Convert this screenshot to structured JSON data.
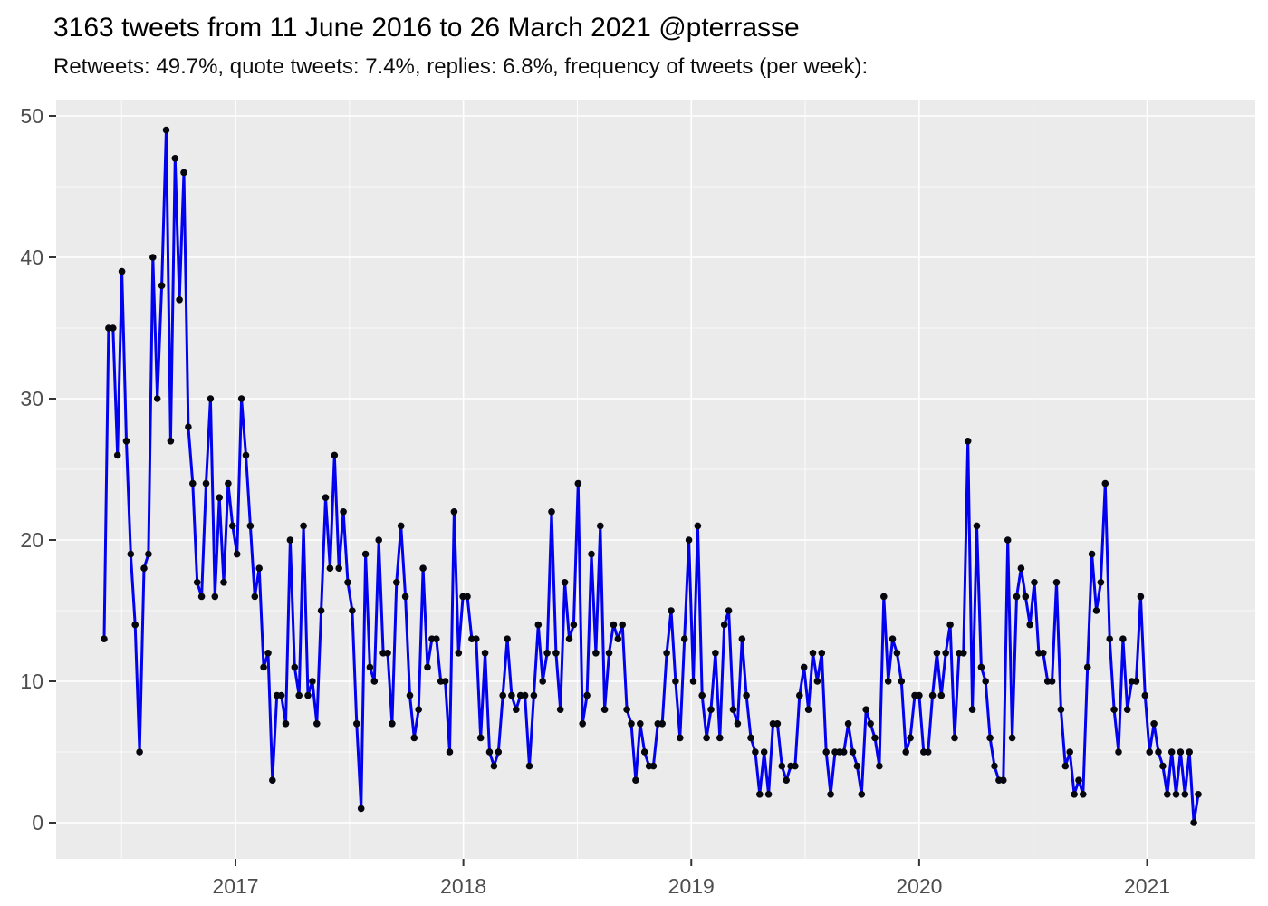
{
  "header": {
    "title": "3163 tweets from 11 June 2016 to 26 March 2021 @pterrasse",
    "subtitle": "Retweets: 49.7%, quote tweets: 7.4%, replies: 6.8%, frequency of tweets (per week):"
  },
  "chart_data": {
    "type": "line",
    "title": "3163 tweets from 11 June 2016 to 26 March 2021 @pterrasse",
    "subtitle": "Retweets: 49.7%, quote tweets: 7.4%, replies: 6.8%, frequency of tweets (per week):",
    "x_axis": {
      "label": "",
      "tick_labels": [
        "2017",
        "2018",
        "2019",
        "2020",
        "2021"
      ],
      "start_date": "11 June 2016",
      "end_date": "26 March 2021",
      "unit": "week"
    },
    "y_axis": {
      "label": "",
      "tick_labels": [
        "0",
        "10",
        "20",
        "30",
        "40",
        "50"
      ],
      "major_ticks": [
        0,
        10,
        20,
        30,
        40,
        50
      ],
      "minor_ticks": [
        5,
        15,
        25,
        35,
        45
      ],
      "range": [
        0,
        50
      ]
    },
    "grid": "on",
    "legend_position": "none",
    "series": [
      {
        "name": "tweets per week",
        "values": [
          13,
          35,
          35,
          26,
          39,
          27,
          19,
          14,
          5,
          18,
          19,
          40,
          30,
          38,
          49,
          27,
          47,
          37,
          46,
          28,
          24,
          17,
          16,
          24,
          30,
          16,
          23,
          17,
          24,
          21,
          19,
          30,
          26,
          21,
          16,
          18,
          11,
          12,
          3,
          9,
          9,
          7,
          20,
          11,
          9,
          21,
          9,
          10,
          7,
          15,
          23,
          18,
          26,
          18,
          22,
          17,
          15,
          7,
          1,
          19,
          11,
          10,
          20,
          12,
          12,
          7,
          17,
          21,
          16,
          9,
          6,
          8,
          18,
          11,
          13,
          13,
          10,
          10,
          5,
          22,
          12,
          16,
          16,
          13,
          13,
          6,
          12,
          5,
          4,
          5,
          9,
          13,
          9,
          8,
          9,
          9,
          4,
          9,
          14,
          10,
          12,
          22,
          12,
          8,
          17,
          13,
          14,
          24,
          7,
          9,
          19,
          12,
          21,
          8,
          12,
          14,
          13,
          14,
          8,
          7,
          3,
          7,
          5,
          4,
          4,
          7,
          7,
          12,
          15,
          10,
          6,
          13,
          20,
          10,
          21,
          9,
          6,
          8,
          12,
          6,
          14,
          15,
          8,
          7,
          13,
          9,
          6,
          5,
          2,
          5,
          2,
          7,
          7,
          4,
          3,
          4,
          4,
          9,
          11,
          8,
          12,
          10,
          12,
          5,
          2,
          5,
          5,
          5,
          7,
          5,
          4,
          2,
          8,
          7,
          6,
          4,
          16,
          10,
          13,
          12,
          10,
          5,
          6,
          9,
          9,
          5,
          5,
          9,
          12,
          9,
          12,
          14,
          6,
          12,
          12,
          27,
          8,
          21,
          11,
          10,
          6,
          4,
          3,
          3,
          20,
          6,
          16,
          18,
          16,
          14,
          17,
          12,
          12,
          10,
          10,
          17,
          8,
          4,
          5,
          2,
          3,
          2,
          11,
          19,
          15,
          17,
          24,
          13,
          8,
          5,
          13,
          8,
          10,
          10,
          16,
          9,
          5,
          7,
          5,
          4,
          2,
          5,
          2,
          5,
          2,
          5,
          0,
          2
        ]
      }
    ],
    "colors": {
      "line": "#0202EE",
      "point": "#06060F",
      "panel_background": "#EBEBEB",
      "gridline": "#FFFFFF",
      "axis_text": "#4D4D4D",
      "tick_mark": "#333333",
      "title_text": "#000000"
    }
  }
}
